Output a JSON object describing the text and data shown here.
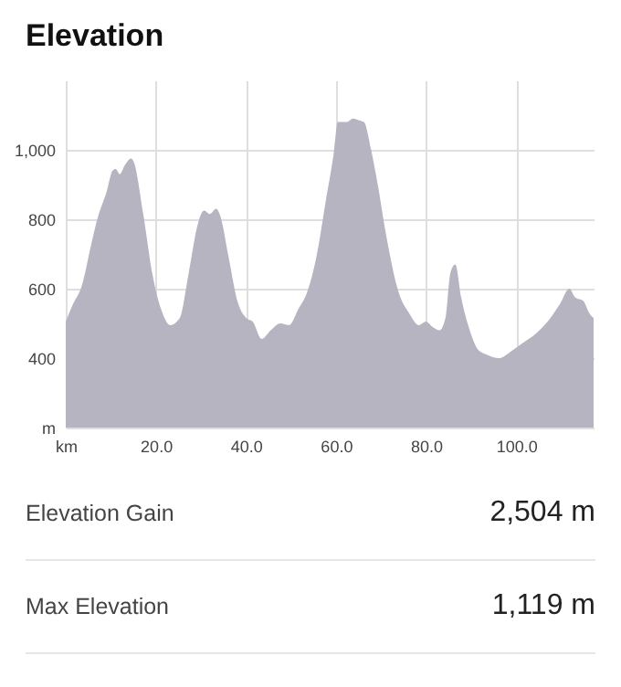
{
  "chart_data": {
    "type": "area",
    "title": "Elevation",
    "x": [
      0,
      1.6,
      3.6,
      5.7,
      7,
      9.1,
      10.4,
      11.1,
      12,
      13.1,
      14.5,
      15.1,
      17.2,
      19.2,
      21.2,
      23.2,
      25.3,
      27.3,
      29.3,
      30.7,
      32,
      33.4,
      34.3,
      36.1,
      38.1,
      40.1,
      41.5,
      43.5,
      45.5,
      47.6,
      49.6,
      51.6,
      53.6,
      55.7,
      57.7,
      59.5,
      60.4,
      62.4,
      63.8,
      65.1,
      66.2,
      67.8,
      69.2,
      71.2,
      73.9,
      76.2,
      78.4,
      80,
      81.4,
      83,
      84.3,
      85.4,
      86.5,
      87.8,
      89.7,
      91.5,
      93.5,
      96.2,
      98.9,
      101.6,
      104.3,
      107,
      109.7,
      111.8,
      113.1,
      114.9,
      116.2,
      117.2
    ],
    "series": [
      {
        "color": "#b5b4c0",
        "values": [
          505,
          555,
          610,
          730,
          800,
          880,
          940,
          945,
          930,
          955,
          975,
          965,
          815,
          645,
          540,
          495,
          515,
          645,
          785,
          825,
          815,
          830,
          810,
          695,
          565,
          515,
          505,
          455,
          480,
          500,
          495,
          540,
          590,
          695,
          850,
          990,
          1080,
          1080,
          1090,
          1085,
          1080,
          1000,
          905,
          750,
          590,
          530,
          495,
          505,
          490,
          480,
          515,
          645,
          670,
          575,
          480,
          425,
          410,
          400,
          420,
          445,
          470,
          505,
          555,
          600,
          575,
          565,
          530,
          515
        ]
      }
    ],
    "xlim": [
      0,
      117.2
    ],
    "xticks": [
      {
        "value": 0,
        "label": "km"
      },
      {
        "value": 20,
        "label": "20.0"
      },
      {
        "value": 40,
        "label": "40.0"
      },
      {
        "value": 60,
        "label": "60.0"
      },
      {
        "value": 80,
        "label": "80.0"
      },
      {
        "value": 100,
        "label": "100.0"
      }
    ],
    "ylim": [
      200,
      1200
    ],
    "yticks": [
      {
        "value": 200,
        "label": "m"
      },
      400,
      600,
      800,
      {
        "value": 1000,
        "label": "1,000"
      }
    ],
    "grid": true,
    "annotations": [
      "Elevation Gain",
      "2,504 m",
      "Max Elevation",
      "1,119 m"
    ]
  }
}
